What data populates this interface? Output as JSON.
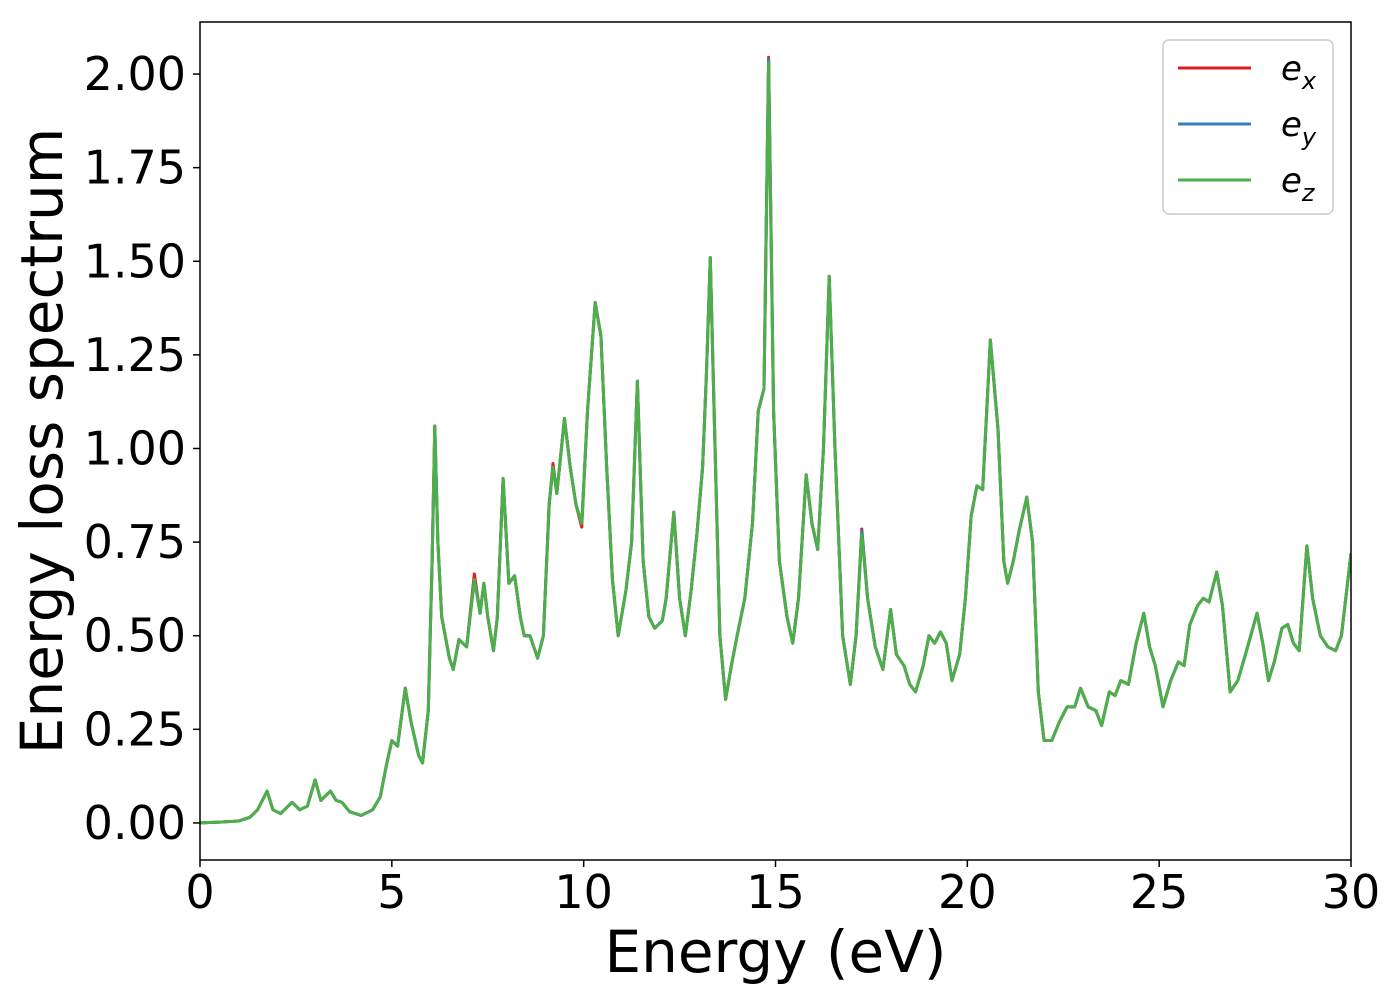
{
  "chart_data": {
    "type": "line",
    "xlabel": "Energy (eV)",
    "ylabel": "Energy loss spectrum",
    "x": [
      0,
      0.5,
      1,
      1.3,
      1.5,
      1.75,
      1.9,
      2.1,
      2.4,
      2.6,
      2.8,
      3.0,
      3.15,
      3.4,
      3.55,
      3.7,
      3.9,
      4.2,
      4.5,
      4.7,
      4.85,
      5.0,
      5.15,
      5.35,
      5.5,
      5.7,
      5.8,
      5.95,
      6.05,
      6.12,
      6.2,
      6.3,
      6.5,
      6.6,
      6.75,
      6.85,
      6.95,
      7.15,
      7.3,
      7.4,
      7.5,
      7.65,
      7.75,
      7.9,
      8.05,
      8.2,
      8.35,
      8.45,
      8.6,
      8.8,
      8.95,
      9.1,
      9.2,
      9.3,
      9.5,
      9.65,
      9.8,
      9.95,
      10.1,
      10.3,
      10.45,
      10.6,
      10.75,
      10.9,
      11.1,
      11.25,
      11.4,
      11.55,
      11.7,
      11.85,
      12.05,
      12.15,
      12.35,
      12.5,
      12.65,
      12.8,
      12.95,
      13.1,
      13.2,
      13.3,
      13.4,
      13.55,
      13.7,
      13.85,
      14.0,
      14.2,
      14.4,
      14.55,
      14.7,
      14.82,
      14.95,
      15.1,
      15.3,
      15.45,
      15.6,
      15.8,
      15.95,
      16.1,
      16.25,
      16.4,
      16.55,
      16.75,
      16.95,
      17.1,
      17.25,
      17.4,
      17.6,
      17.8,
      18.0,
      18.15,
      18.35,
      18.5,
      18.65,
      18.85,
      19.0,
      19.15,
      19.3,
      19.45,
      19.6,
      19.8,
      19.95,
      20.1,
      20.25,
      20.4,
      20.6,
      20.8,
      20.95,
      21.05,
      21.2,
      21.35,
      21.55,
      21.7,
      21.85,
      22.0,
      22.2,
      22.4,
      22.6,
      22.8,
      22.95,
      23.15,
      23.35,
      23.5,
      23.7,
      23.85,
      24.0,
      24.2,
      24.4,
      24.6,
      24.75,
      24.9,
      25.1,
      25.3,
      25.5,
      25.65,
      25.8,
      26.0,
      26.15,
      26.3,
      26.5,
      26.65,
      26.85,
      27.05,
      27.25,
      27.55,
      27.7,
      27.85,
      28.0,
      28.2,
      28.35,
      28.5,
      28.65,
      28.85,
      29.0,
      29.2,
      29.4,
      29.6,
      29.75,
      30.0
    ],
    "series": [
      {
        "name": "e_x",
        "color": "#e41a1c",
        "values": [
          0,
          0.002,
          0.005,
          0.015,
          0.035,
          0.085,
          0.035,
          0.025,
          0.055,
          0.035,
          0.045,
          0.115,
          0.06,
          0.085,
          0.06,
          0.055,
          0.03,
          0.02,
          0.035,
          0.07,
          0.15,
          0.22,
          0.205,
          0.36,
          0.27,
          0.18,
          0.16,
          0.3,
          0.7,
          1.06,
          0.75,
          0.55,
          0.44,
          0.41,
          0.49,
          0.48,
          0.47,
          0.665,
          0.56,
          0.64,
          0.55,
          0.46,
          0.55,
          0.92,
          0.64,
          0.66,
          0.55,
          0.5,
          0.5,
          0.44,
          0.5,
          0.85,
          0.96,
          0.88,
          1.08,
          0.95,
          0.85,
          0.79,
          1.1,
          1.39,
          1.3,
          0.95,
          0.65,
          0.5,
          0.62,
          0.75,
          1.18,
          0.7,
          0.55,
          0.52,
          0.54,
          0.6,
          0.83,
          0.6,
          0.5,
          0.62,
          0.77,
          0.95,
          1.2,
          1.51,
          1.1,
          0.5,
          0.33,
          0.42,
          0.5,
          0.6,
          0.8,
          1.1,
          1.16,
          2.045,
          1.1,
          0.7,
          0.55,
          0.48,
          0.6,
          0.93,
          0.8,
          0.73,
          1.0,
          1.46,
          1.0,
          0.5,
          0.37,
          0.5,
          0.785,
          0.6,
          0.47,
          0.41,
          0.57,
          0.45,
          0.42,
          0.37,
          0.35,
          0.42,
          0.5,
          0.48,
          0.51,
          0.48,
          0.38,
          0.45,
          0.6,
          0.82,
          0.9,
          0.89,
          1.29,
          1.05,
          0.7,
          0.64,
          0.7,
          0.78,
          0.87,
          0.75,
          0.35,
          0.22,
          0.22,
          0.27,
          0.31,
          0.31,
          0.36,
          0.31,
          0.3,
          0.26,
          0.35,
          0.34,
          0.38,
          0.37,
          0.48,
          0.56,
          0.47,
          0.42,
          0.31,
          0.38,
          0.43,
          0.42,
          0.53,
          0.58,
          0.6,
          0.59,
          0.67,
          0.58,
          0.35,
          0.38,
          0.45,
          0.56,
          0.48,
          0.38,
          0.43,
          0.52,
          0.53,
          0.48,
          0.46,
          0.74,
          0.6,
          0.5,
          0.47,
          0.46,
          0.5,
          0.72
        ]
      },
      {
        "name": "e_y",
        "color": "#377eb8",
        "values": [
          0,
          0.002,
          0.005,
          0.015,
          0.035,
          0.085,
          0.035,
          0.025,
          0.055,
          0.035,
          0.045,
          0.115,
          0.06,
          0.085,
          0.06,
          0.055,
          0.03,
          0.02,
          0.035,
          0.07,
          0.15,
          0.22,
          0.205,
          0.36,
          0.27,
          0.18,
          0.16,
          0.3,
          0.7,
          1.06,
          0.75,
          0.55,
          0.44,
          0.41,
          0.49,
          0.48,
          0.47,
          0.65,
          0.56,
          0.64,
          0.55,
          0.46,
          0.55,
          0.92,
          0.64,
          0.66,
          0.55,
          0.5,
          0.5,
          0.44,
          0.5,
          0.85,
          0.95,
          0.88,
          1.08,
          0.95,
          0.85,
          0.8,
          1.1,
          1.39,
          1.3,
          0.95,
          0.65,
          0.5,
          0.62,
          0.75,
          1.18,
          0.7,
          0.55,
          0.52,
          0.54,
          0.6,
          0.83,
          0.6,
          0.5,
          0.62,
          0.77,
          0.95,
          1.2,
          1.51,
          1.1,
          0.5,
          0.33,
          0.42,
          0.5,
          0.6,
          0.8,
          1.1,
          1.16,
          2.04,
          1.1,
          0.7,
          0.55,
          0.48,
          0.6,
          0.93,
          0.8,
          0.73,
          1.0,
          1.46,
          1.0,
          0.5,
          0.37,
          0.5,
          0.78,
          0.6,
          0.47,
          0.41,
          0.57,
          0.45,
          0.42,
          0.37,
          0.35,
          0.42,
          0.5,
          0.48,
          0.51,
          0.48,
          0.38,
          0.45,
          0.6,
          0.82,
          0.9,
          0.89,
          1.29,
          1.05,
          0.7,
          0.64,
          0.7,
          0.78,
          0.87,
          0.75,
          0.35,
          0.22,
          0.22,
          0.27,
          0.31,
          0.31,
          0.36,
          0.31,
          0.3,
          0.26,
          0.35,
          0.34,
          0.38,
          0.37,
          0.48,
          0.56,
          0.47,
          0.42,
          0.31,
          0.38,
          0.43,
          0.42,
          0.53,
          0.58,
          0.6,
          0.59,
          0.67,
          0.58,
          0.35,
          0.38,
          0.45,
          0.56,
          0.48,
          0.38,
          0.43,
          0.52,
          0.53,
          0.48,
          0.46,
          0.74,
          0.6,
          0.5,
          0.47,
          0.46,
          0.5,
          0.72
        ]
      },
      {
        "name": "e_z",
        "color": "#4daf4a",
        "values": [
          0,
          0.002,
          0.005,
          0.015,
          0.035,
          0.085,
          0.035,
          0.025,
          0.055,
          0.035,
          0.045,
          0.115,
          0.06,
          0.085,
          0.06,
          0.055,
          0.03,
          0.02,
          0.035,
          0.07,
          0.15,
          0.22,
          0.205,
          0.36,
          0.27,
          0.18,
          0.16,
          0.3,
          0.7,
          1.06,
          0.75,
          0.55,
          0.44,
          0.41,
          0.49,
          0.48,
          0.47,
          0.65,
          0.56,
          0.64,
          0.55,
          0.46,
          0.55,
          0.92,
          0.64,
          0.66,
          0.55,
          0.5,
          0.5,
          0.44,
          0.5,
          0.85,
          0.95,
          0.88,
          1.08,
          0.95,
          0.85,
          0.8,
          1.1,
          1.39,
          1.3,
          0.95,
          0.65,
          0.5,
          0.62,
          0.75,
          1.18,
          0.7,
          0.55,
          0.52,
          0.54,
          0.6,
          0.83,
          0.6,
          0.5,
          0.62,
          0.77,
          0.95,
          1.2,
          1.51,
          1.1,
          0.5,
          0.33,
          0.42,
          0.5,
          0.6,
          0.8,
          1.1,
          1.16,
          2.03,
          1.1,
          0.7,
          0.55,
          0.48,
          0.6,
          0.93,
          0.8,
          0.73,
          1.0,
          1.46,
          1.0,
          0.5,
          0.37,
          0.5,
          0.77,
          0.6,
          0.47,
          0.41,
          0.57,
          0.45,
          0.42,
          0.37,
          0.35,
          0.42,
          0.5,
          0.48,
          0.51,
          0.48,
          0.38,
          0.45,
          0.6,
          0.82,
          0.9,
          0.89,
          1.29,
          1.05,
          0.7,
          0.64,
          0.7,
          0.78,
          0.87,
          0.75,
          0.35,
          0.22,
          0.22,
          0.27,
          0.31,
          0.31,
          0.36,
          0.31,
          0.3,
          0.26,
          0.35,
          0.34,
          0.38,
          0.37,
          0.48,
          0.56,
          0.47,
          0.42,
          0.31,
          0.38,
          0.43,
          0.42,
          0.53,
          0.58,
          0.6,
          0.59,
          0.67,
          0.58,
          0.35,
          0.38,
          0.45,
          0.56,
          0.48,
          0.38,
          0.43,
          0.52,
          0.53,
          0.48,
          0.46,
          0.74,
          0.6,
          0.5,
          0.47,
          0.46,
          0.5,
          0.72
        ]
      }
    ],
    "xlim": [
      0,
      30
    ],
    "xticks": [
      0,
      5,
      10,
      15,
      20,
      25,
      30
    ],
    "ylim": [
      -0.099,
      2.139
    ],
    "yticks": [
      {
        "value": 0,
        "label": "0.00"
      },
      {
        "value": 0.25,
        "label": "0.25"
      },
      {
        "value": 0.5,
        "label": "0.50"
      },
      {
        "value": 0.75,
        "label": "0.75"
      },
      {
        "value": 1.0,
        "label": "1.00"
      },
      {
        "value": 1.25,
        "label": "1.25"
      },
      {
        "value": 1.5,
        "label": "1.50"
      },
      {
        "value": 1.75,
        "label": "1.75"
      },
      {
        "value": 2.0,
        "label": "2.00"
      }
    ],
    "grid": false,
    "legend": "upper right"
  }
}
